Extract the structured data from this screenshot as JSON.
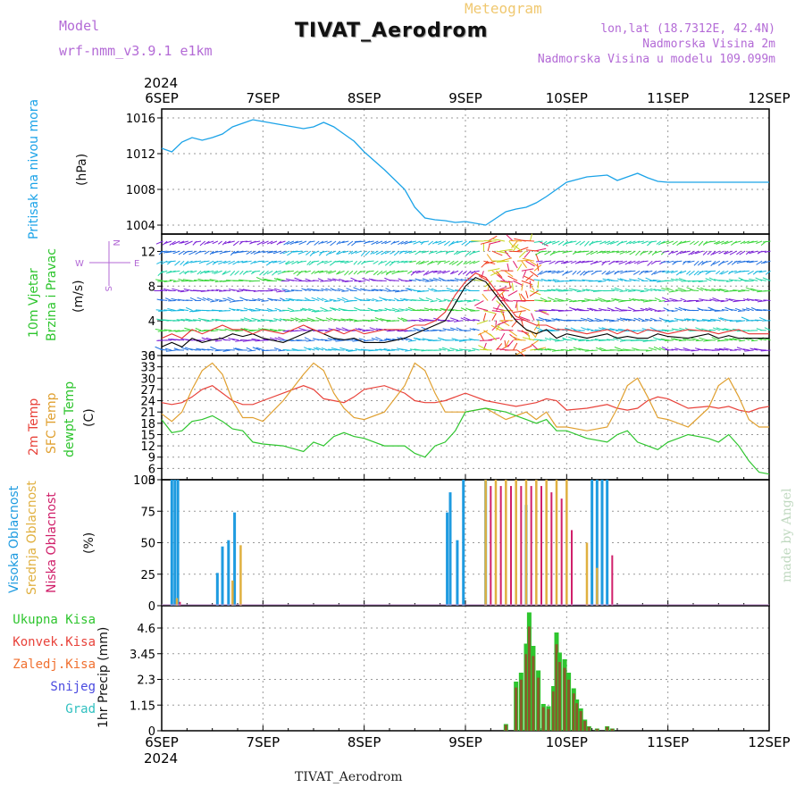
{
  "header": {
    "model_label": "Model",
    "model_name": "wrf-nmm_v3.9.1 e1km",
    "product": "Meteogram",
    "station": "TIVAT_Aerodrom",
    "lonlat": "lon,lat (18.7312E, 42.4N)",
    "altitude": "Nadmorska Visina 2m",
    "model_altitude": "Nadmorska Visina u modelu 109.099m"
  },
  "footer": {
    "station": "TIVAT_Aerodrom",
    "credit": "made by Angel"
  },
  "time_axis": {
    "year": "2024",
    "labels": [
      "6SEP",
      "7SEP",
      "8SEP",
      "9SEP",
      "10SEP",
      "11SEP",
      "12SEP"
    ]
  },
  "panel_labels": {
    "pressure": [
      "Pritisak na nivou mora",
      "(hPa)"
    ],
    "wind": [
      "10m Vjetar",
      "Brzina i Pravac",
      "(m/s)"
    ],
    "compass": [
      "N",
      "W",
      "E",
      "S"
    ],
    "temp": [
      "2m Temp",
      "SFC Temp",
      "dewpt Temp",
      "(C)"
    ],
    "cloud": [
      "Visoka Oblacnost",
      "Srednja Oblacnost",
      "Niska Oblacnost",
      "(%)"
    ],
    "precip_axis": "1hr Precip (mm)",
    "precip_legend": [
      "Ukupna Kisa",
      "Konvek.Kisa",
      "Zaledj.Kisa",
      "Snijeg",
      "Grad"
    ]
  },
  "colors": {
    "pressure": "#1ba3e8",
    "t2m": "#e8423a",
    "tsfc": "#e0a030",
    "dewpt": "#2ec52e",
    "cloud_high": "#1e9be0",
    "cloud_mid": "#e0b040",
    "cloud_low": "#d0206a",
    "rain_total": "#2ec52e",
    "rain_conv": "#e8423a",
    "wind_black": "#000000",
    "wind_red": "#e83030"
  },
  "chart_data": [
    {
      "type": "line",
      "name": "pressure",
      "ylabel": "(hPa)",
      "ylim": [
        1003,
        1017
      ],
      "yticks": [
        1004,
        1008,
        1012,
        1016
      ],
      "x": [
        0,
        0.1,
        0.2,
        0.3,
        0.4,
        0.5,
        0.6,
        0.7,
        0.8,
        0.9,
        1.0,
        1.2,
        1.4,
        1.5,
        1.6,
        1.7,
        1.8,
        1.9,
        2.0,
        2.2,
        2.4,
        2.5,
        2.6,
        2.7,
        2.8,
        2.9,
        3.0,
        3.2,
        3.4,
        3.5,
        3.6,
        3.7,
        3.8,
        3.9,
        4.0,
        4.2,
        4.4,
        4.5,
        4.6,
        4.7,
        4.8,
        4.9,
        5.0,
        5.2,
        5.4,
        5.5,
        5.6,
        5.7,
        5.8,
        5.9,
        6.0
      ],
      "values": [
        1012.6,
        1012.2,
        1013.3,
        1013.8,
        1013.5,
        1013.8,
        1014.2,
        1015.0,
        1015.4,
        1015.8,
        1015.6,
        1015.2,
        1014.8,
        1015.0,
        1015.5,
        1015.0,
        1014.2,
        1013.4,
        1012.2,
        1010.2,
        1008.0,
        1006.0,
        1004.8,
        1004.6,
        1004.5,
        1004.3,
        1004.4,
        1004.0,
        1005.5,
        1005.8,
        1006.0,
        1006.5,
        1007.2,
        1008.0,
        1008.8,
        1009.4,
        1009.6,
        1009.0,
        1009.4,
        1009.8,
        1009.3,
        1008.9,
        1008.8,
        1008.8,
        1008.8,
        1008.8,
        1008.8,
        1008.8,
        1008.8,
        1008.8,
        1008.8
      ]
    },
    {
      "type": "line",
      "name": "wind",
      "ylabel": "(m/s)",
      "ylim": [
        0,
        14
      ],
      "yticks": [
        0,
        4,
        8,
        12
      ],
      "x": [
        0,
        0.1,
        0.2,
        0.3,
        0.4,
        0.5,
        0.6,
        0.7,
        0.8,
        0.9,
        1.0,
        1.2,
        1.4,
        1.5,
        1.6,
        1.7,
        1.8,
        1.9,
        2.0,
        2.2,
        2.4,
        2.5,
        2.6,
        2.7,
        2.8,
        2.9,
        3.0,
        3.1,
        3.2,
        3.3,
        3.4,
        3.5,
        3.6,
        3.7,
        3.8,
        3.9,
        4.0,
        4.2,
        4.4,
        4.5,
        4.6,
        4.7,
        4.8,
        4.9,
        5.0,
        5.2,
        5.4,
        5.5,
        5.6,
        5.7,
        5.8,
        5.9,
        6.0
      ],
      "series": [
        {
          "values": [
            1,
            1.5,
            1,
            2,
            1.5,
            1.8,
            2,
            2.5,
            2.2,
            2.5,
            2,
            1.5,
            2.5,
            3,
            2.5,
            2,
            1.8,
            2,
            1.5,
            1.5,
            2,
            2.5,
            3,
            3.5,
            4,
            6,
            8,
            9,
            8.5,
            7,
            5.5,
            4,
            3,
            2.5,
            3,
            2,
            2.5,
            2,
            2.5,
            2,
            2.2,
            2,
            2,
            2.5,
            2.2,
            2,
            2.5,
            2,
            2.3,
            2,
            2,
            2,
            2
          ]
        },
        {
          "values": [
            2,
            2.5,
            2,
            3,
            2.5,
            3,
            3.5,
            3,
            3,
            2.5,
            3,
            2.5,
            3.5,
            3,
            2.5,
            3,
            2.5,
            3,
            2.5,
            3,
            3,
            3.5,
            3.5,
            4,
            5,
            7,
            8.5,
            9.5,
            9,
            7.5,
            6,
            4.5,
            4,
            3.5,
            3.5,
            3,
            3,
            2.5,
            3,
            2.5,
            3,
            2.5,
            3,
            2.8,
            2.5,
            3,
            2.8,
            2.5,
            2.8,
            3,
            2.5,
            2.5,
            2.5
          ]
        }
      ]
    },
    {
      "type": "line",
      "name": "temperature",
      "ylabel": "(C)",
      "ylim": [
        3,
        36
      ],
      "yticks": [
        3,
        6,
        9,
        12,
        15,
        18,
        21,
        24,
        27,
        30,
        33,
        36
      ],
      "x": [
        0,
        0.1,
        0.2,
        0.3,
        0.4,
        0.5,
        0.6,
        0.7,
        0.8,
        0.9,
        1.0,
        1.2,
        1.4,
        1.5,
        1.6,
        1.7,
        1.8,
        1.9,
        2.0,
        2.2,
        2.4,
        2.5,
        2.6,
        2.7,
        2.8,
        2.9,
        3.0,
        3.2,
        3.4,
        3.5,
        3.6,
        3.7,
        3.8,
        3.9,
        4.0,
        4.2,
        4.4,
        4.5,
        4.6,
        4.7,
        4.8,
        4.9,
        5.0,
        5.2,
        5.4,
        5.5,
        5.6,
        5.7,
        5.8,
        5.9,
        6.0
      ],
      "series": [
        {
          "values": [
            23.5,
            23,
            23.5,
            25,
            27,
            28,
            26,
            24,
            23,
            23,
            24,
            26,
            28,
            27,
            24.5,
            24,
            23.5,
            25,
            27,
            28,
            26,
            24,
            23.5,
            23.5,
            24,
            25,
            26,
            24,
            23,
            22.5,
            23,
            23.5,
            24.5,
            24,
            21.5,
            22,
            23,
            22,
            21.5,
            22,
            24,
            25,
            24.5,
            22,
            22.5,
            22,
            22.5,
            21.5,
            21,
            22,
            22.5
          ]
        },
        {
          "values": [
            20.5,
            18.5,
            21,
            27,
            32,
            34,
            31,
            24,
            19.5,
            19.5,
            18.5,
            24,
            31,
            34,
            32,
            26,
            22,
            19.5,
            19,
            21,
            28,
            34,
            32,
            26,
            21,
            21,
            21,
            22,
            19,
            20,
            21,
            19,
            21,
            17,
            17,
            16,
            17,
            22,
            28,
            30,
            25,
            19.5,
            19,
            17,
            22,
            28,
            30,
            25,
            19,
            17,
            17
          ]
        },
        {
          "values": [
            19,
            15.5,
            16,
            18.5,
            19,
            20,
            18.5,
            16.5,
            16,
            13,
            12.5,
            12,
            10.5,
            13,
            12,
            14.5,
            15.5,
            14.5,
            14,
            12,
            12,
            10,
            9,
            12,
            13,
            16,
            21,
            22,
            21,
            20,
            19,
            18,
            19,
            16,
            16,
            14,
            13,
            15,
            16,
            13,
            12,
            11,
            13,
            15,
            14,
            13,
            15,
            12,
            8,
            5,
            4.5
          ]
        }
      ]
    },
    {
      "type": "bar",
      "name": "cloud_cover",
      "ylabel": "(%)",
      "ylim": [
        0,
        100
      ],
      "yticks": [
        0,
        25,
        50,
        75,
        100
      ],
      "bars_high": [
        [
          0.1,
          100
        ],
        [
          0.13,
          100
        ],
        [
          0.16,
          100
        ],
        [
          0.55,
          26
        ],
        [
          0.6,
          47
        ],
        [
          0.66,
          52
        ],
        [
          0.72,
          74
        ],
        [
          2.82,
          74
        ],
        [
          2.85,
          90
        ],
        [
          2.92,
          52
        ],
        [
          2.98,
          100
        ],
        [
          3.2,
          100
        ],
        [
          3.6,
          80
        ],
        [
          4.25,
          100
        ],
        [
          4.3,
          100
        ],
        [
          4.35,
          100
        ],
        [
          4.4,
          100
        ]
      ],
      "bars_mid": [
        [
          0.15,
          6
        ],
        [
          0.7,
          20
        ],
        [
          0.78,
          48
        ],
        [
          3.2,
          100
        ],
        [
          3.3,
          100
        ],
        [
          3.4,
          100
        ],
        [
          3.5,
          100
        ],
        [
          3.6,
          100
        ],
        [
          3.7,
          100
        ],
        [
          3.8,
          100
        ],
        [
          3.9,
          100
        ],
        [
          4.0,
          100
        ],
        [
          4.2,
          50
        ],
        [
          4.3,
          30
        ]
      ],
      "bars_low": [
        [
          0.18,
          3
        ],
        [
          3.25,
          95
        ],
        [
          3.35,
          95
        ],
        [
          3.45,
          95
        ],
        [
          3.55,
          95
        ],
        [
          3.65,
          95
        ],
        [
          3.75,
          95
        ],
        [
          3.85,
          90
        ],
        [
          3.95,
          85
        ],
        [
          4.05,
          60
        ],
        [
          4.45,
          40
        ]
      ]
    },
    {
      "type": "bar",
      "name": "precipitation",
      "ylabel": "1hr Precip (mm)",
      "ylim": [
        0,
        5.6
      ],
      "yticks": [
        0,
        1.15,
        2.3,
        3.45,
        4.6
      ],
      "bars": [
        [
          3.4,
          0.3
        ],
        [
          3.5,
          2.2
        ],
        [
          3.55,
          2.6
        ],
        [
          3.6,
          3.9
        ],
        [
          3.63,
          5.3
        ],
        [
          3.67,
          3.8
        ],
        [
          3.72,
          2.7
        ],
        [
          3.77,
          1.2
        ],
        [
          3.82,
          1.1
        ],
        [
          3.87,
          2.0
        ],
        [
          3.9,
          4.4
        ],
        [
          3.93,
          3.5
        ],
        [
          3.98,
          3.2
        ],
        [
          4.02,
          2.6
        ],
        [
          4.07,
          1.9
        ],
        [
          4.1,
          1.4
        ],
        [
          4.14,
          1.0
        ],
        [
          4.18,
          0.5
        ],
        [
          4.22,
          0.2
        ],
        [
          4.3,
          0.1
        ],
        [
          4.4,
          0.2
        ],
        [
          4.45,
          0.1
        ]
      ]
    }
  ]
}
